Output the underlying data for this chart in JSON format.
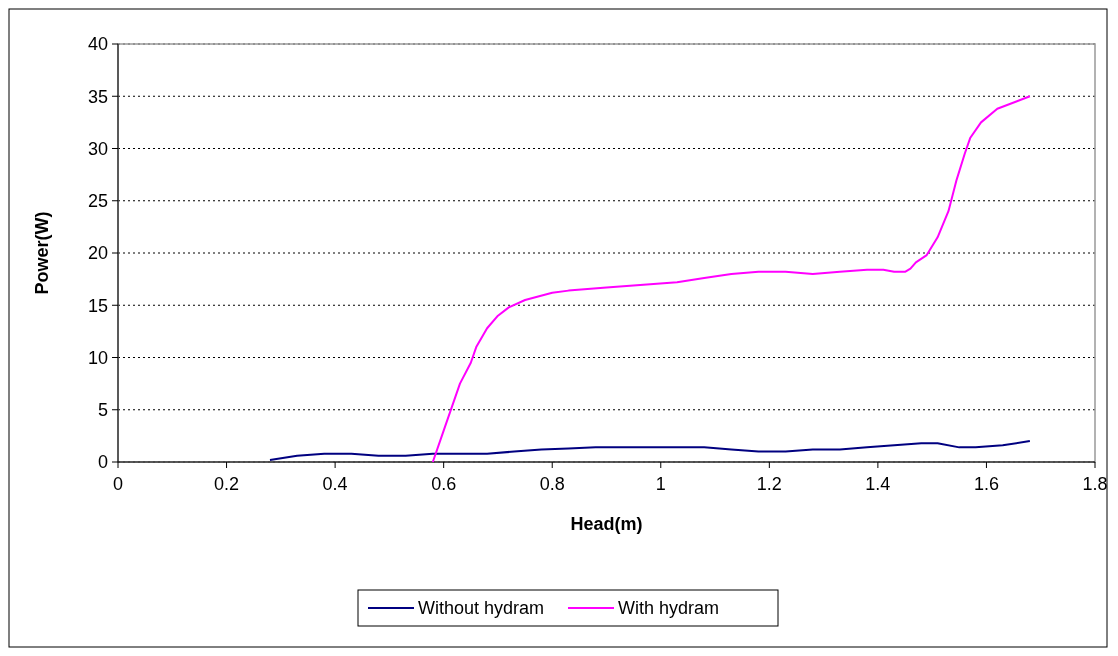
{
  "chart_data": {
    "type": "line",
    "xlabel": "Head(m)",
    "ylabel": "Power(W)",
    "xlim": [
      0,
      1.8
    ],
    "xticks": [
      0,
      0.2,
      0.4,
      0.6,
      0.8,
      1,
      1.2,
      1.4,
      1.6,
      1.8
    ],
    "ylim": [
      0,
      40
    ],
    "yticks": [
      0,
      5,
      10,
      15,
      20,
      25,
      30,
      35,
      40
    ],
    "grid": "y",
    "legend": "bottom",
    "marker": "none",
    "line_style": "solid",
    "series": [
      {
        "name": "Without hydram",
        "color": "#000080",
        "x": [
          0.28,
          0.33,
          0.38,
          0.43,
          0.48,
          0.53,
          0.58,
          0.63,
          0.68,
          0.73,
          0.78,
          0.83,
          0.88,
          0.93,
          0.98,
          1.03,
          1.08,
          1.13,
          1.18,
          1.23,
          1.28,
          1.33,
          1.38,
          1.43,
          1.48,
          1.51,
          1.55,
          1.58,
          1.63,
          1.68
        ],
        "values": [
          0.2,
          0.6,
          0.8,
          0.8,
          0.6,
          0.6,
          0.8,
          0.8,
          0.8,
          1.0,
          1.2,
          1.3,
          1.4,
          1.4,
          1.4,
          1.4,
          1.4,
          1.2,
          1.0,
          1.0,
          1.2,
          1.2,
          1.4,
          1.6,
          1.8,
          1.8,
          1.4,
          1.4,
          1.6,
          2.0
        ]
      },
      {
        "name": "With hydram",
        "color": "#ff00ff",
        "x": [
          0.58,
          0.6,
          0.63,
          0.65,
          0.66,
          0.68,
          0.7,
          0.72,
          0.75,
          0.8,
          0.83,
          0.9,
          1.03,
          1.08,
          1.13,
          1.18,
          1.23,
          1.28,
          1.33,
          1.38,
          1.41,
          1.43,
          1.45,
          1.46,
          1.47,
          1.49,
          1.51,
          1.53,
          1.545,
          1.56,
          1.57,
          1.59,
          1.62,
          1.68
        ],
        "values": [
          0,
          3,
          7.5,
          9.5,
          11,
          12.8,
          14,
          14.8,
          15.5,
          16.2,
          16.4,
          16.7,
          17.2,
          17.6,
          18.0,
          18.2,
          18.2,
          18.0,
          18.2,
          18.4,
          18.4,
          18.2,
          18.2,
          18.5,
          19.1,
          19.8,
          21.5,
          24,
          27,
          29.5,
          31,
          32.5,
          33.8,
          35
        ]
      }
    ]
  }
}
